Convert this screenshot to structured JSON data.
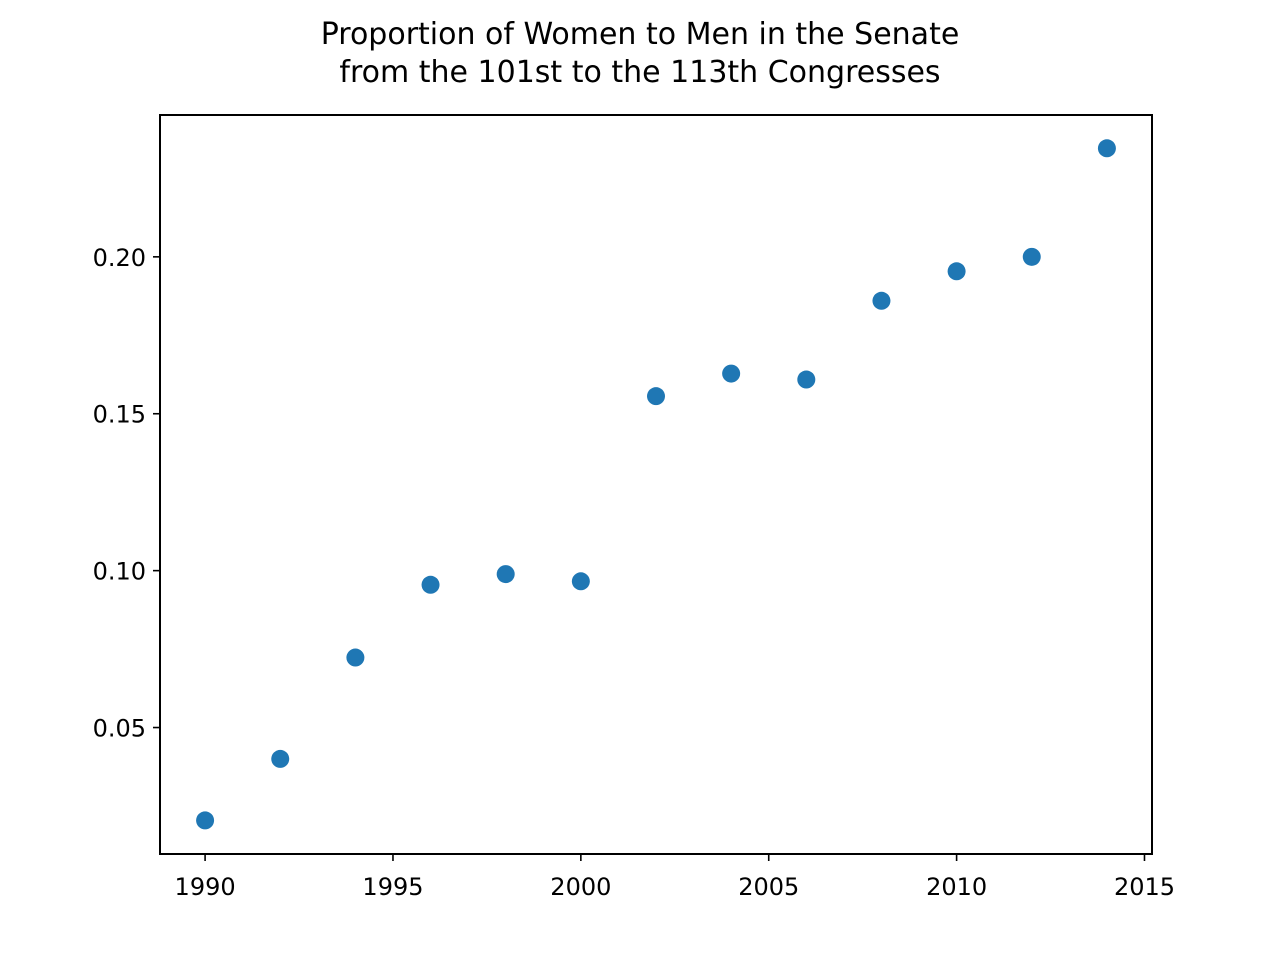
{
  "chart_data": {
    "type": "scatter",
    "title": "Proportion of Women to Men in the Senate\nfrom the 101st to the 113th Congresses",
    "title_lines": [
      "Proportion of Women to Men in the Senate",
      "from the 101st to the 113th Congresses"
    ],
    "xlabel": "",
    "ylabel": "",
    "x": [
      1990,
      1992,
      1994,
      1996,
      1998,
      2000,
      2002,
      2004,
      2006,
      2008,
      2010,
      2012,
      2014
    ],
    "y": [
      0.0204,
      0.04,
      0.0723,
      0.0955,
      0.0989,
      0.0966,
      0.1556,
      0.1628,
      0.1609,
      0.186,
      0.1954,
      0.2,
      0.2346
    ],
    "xlim": [
      1988.8,
      2015.2
    ],
    "ylim": [
      0.0097,
      0.2452
    ],
    "xticks": [
      1990,
      1995,
      2000,
      2005,
      2010,
      2015
    ],
    "xtick_labels": [
      "1990",
      "1995",
      "2000",
      "2005",
      "2010",
      "2015"
    ],
    "yticks": [
      0.05,
      0.1,
      0.15,
      0.2
    ],
    "ytick_labels": [
      "0.05",
      "0.10",
      "0.15",
      "0.20"
    ],
    "grid": false,
    "legend": false,
    "marker_color": "#1f77b4"
  }
}
